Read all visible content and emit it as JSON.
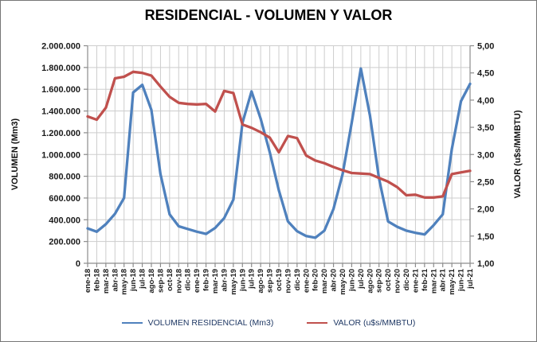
{
  "title": "RESIDENCIAL - VOLUMEN Y VALOR",
  "chart_data": {
    "type": "line",
    "title": "RESIDENCIAL - VOLUMEN Y VALOR",
    "grid": true,
    "legend_position": "bottom",
    "x": [
      "ene-18",
      "feb-18",
      "mar-18",
      "abr-18",
      "may-18",
      "jun-18",
      "jul-18",
      "ago-18",
      "sep-18",
      "oct-18",
      "nov-18",
      "dic-18",
      "ene-19",
      "feb-19",
      "mar-19",
      "abr-19",
      "may-19",
      "jun-19",
      "jul-19",
      "ago-19",
      "sep-19",
      "oct-19",
      "nov-19",
      "dic-19",
      "ene-20",
      "feb-20",
      "mar-20",
      "abr-20",
      "may-20",
      "jun-20",
      "jul-20",
      "ago-20",
      "sep-20",
      "oct-20",
      "nov-20",
      "dic-20",
      "ene-21",
      "feb-21",
      "mar-21",
      "abr-21",
      "may-21",
      "jun-21",
      "jul-21"
    ],
    "series": [
      {
        "name": "VOLUMEN  RESIDENCIAL  (Mm3)",
        "axis": "left",
        "color": "#4F81BD",
        "values": [
          320000,
          290000,
          360000,
          455000,
          600000,
          1570000,
          1640000,
          1410000,
          820000,
          450000,
          340000,
          315000,
          290000,
          270000,
          325000,
          415000,
          585000,
          1290000,
          1580000,
          1330000,
          1020000,
          670000,
          385000,
          295000,
          250000,
          235000,
          300000,
          500000,
          820000,
          1290000,
          1790000,
          1360000,
          780000,
          385000,
          335000,
          300000,
          280000,
          265000,
          350000,
          450000,
          1050000,
          1490000,
          1650000
        ]
      },
      {
        "name": "VALOR (u$s/MMBTU)",
        "axis": "right",
        "color": "#C0504D",
        "values": [
          3.7,
          3.64,
          3.86,
          4.4,
          4.43,
          4.52,
          4.5,
          4.45,
          4.25,
          4.06,
          3.95,
          3.93,
          3.92,
          3.93,
          3.79,
          4.17,
          4.13,
          3.55,
          3.49,
          3.41,
          3.31,
          3.04,
          3.34,
          3.3,
          2.98,
          2.89,
          2.84,
          2.77,
          2.71,
          2.66,
          2.65,
          2.64,
          2.57,
          2.5,
          2.4,
          2.25,
          2.26,
          2.21,
          2.21,
          2.23,
          2.64,
          2.67,
          2.7
        ]
      }
    ],
    "left_axis": {
      "label": "VOLUMEN (Mm3)",
      "min": 0,
      "max": 2000000,
      "step": 200000,
      "tick_labels": [
        "2.000.000",
        "1.800.000",
        "1.600.000",
        "1.400.000",
        "1.200.000",
        "1.000.000",
        "800.000",
        "600.000",
        "400.000",
        "200.000",
        "0"
      ]
    },
    "right_axis": {
      "label": "VALOR (u$s/MMBTU)",
      "min": 1,
      "max": 5,
      "step": 0.5,
      "tick_labels": [
        "5,00",
        "4,50",
        "4,00",
        "3,50",
        "3,00",
        "2,50",
        "2,00",
        "1,50",
        "1,00"
      ]
    }
  }
}
